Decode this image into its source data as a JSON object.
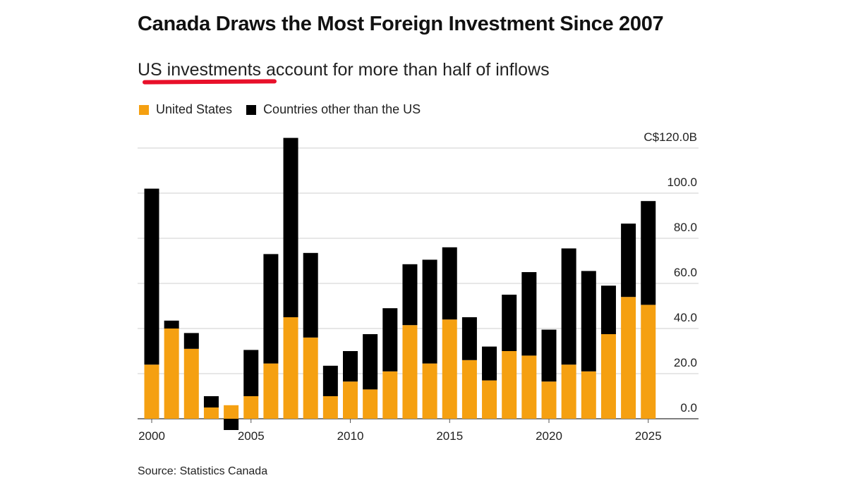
{
  "title": "Canada Draws the Most Foreign Investment Since 2007",
  "subtitle": {
    "highlighted": "US investments",
    "rest": " account for more than half of inflows"
  },
  "legend": [
    {
      "label": "United States",
      "color": "#f5a011"
    },
    {
      "label": "Countries other than the US",
      "color": "#000000"
    }
  ],
  "source": "Source: Statistics Canada",
  "colors": {
    "us": "#f5a011",
    "other": "#000000",
    "grid": "#cfcfcf",
    "axis": "#555555"
  },
  "chart_data": {
    "type": "bar",
    "stacked": true,
    "title": "Canada Draws the Most Foreign Investment Since 2007",
    "subtitle": "US investments account for more than half of inflows",
    "x": [
      2000,
      2001,
      2002,
      2003,
      2004,
      2005,
      2006,
      2007,
      2008,
      2009,
      2010,
      2011,
      2012,
      2013,
      2014,
      2015,
      2016,
      2017,
      2018,
      2019,
      2020,
      2021,
      2022,
      2023,
      2024,
      2025
    ],
    "series": [
      {
        "name": "United States",
        "values": [
          24,
          40,
          31,
          5,
          6,
          10,
          24.5,
          45,
          36,
          10,
          16.5,
          13,
          21,
          41.5,
          24.5,
          44,
          26,
          17,
          30,
          28,
          16.5,
          24,
          21,
          37.5,
          54,
          50.5
        ]
      },
      {
        "name": "Countries other than the US",
        "values": [
          78,
          3.5,
          7,
          5,
          -5,
          20.5,
          48.5,
          79.5,
          37.5,
          13.5,
          13.5,
          24.5,
          28,
          27,
          46,
          32,
          19,
          15,
          25,
          37,
          23,
          51.5,
          44.5,
          21.5,
          32.5,
          46
        ]
      }
    ],
    "xlabel": "",
    "ylabel": "",
    "ylim": [
      -5,
      120
    ],
    "y_ticks": [
      {
        "value": 0,
        "label": "0.0"
      },
      {
        "value": 20,
        "label": "20.0"
      },
      {
        "value": 40,
        "label": "40.0"
      },
      {
        "value": 60,
        "label": "60.0"
      },
      {
        "value": 80,
        "label": "80.0"
      },
      {
        "value": 100,
        "label": "100.0"
      },
      {
        "value": 120,
        "label": "C$120.0B"
      }
    ],
    "x_ticks": [
      {
        "value": 2000,
        "label": "2000"
      },
      {
        "value": 2005,
        "label": "2005"
      },
      {
        "value": 2010,
        "label": "2010"
      },
      {
        "value": 2015,
        "label": "2015"
      },
      {
        "value": 2020,
        "label": "2020"
      },
      {
        "value": 2025,
        "label": "2025"
      }
    ],
    "grid": true,
    "legend_position": "top-left",
    "y_axis_position": "right"
  }
}
